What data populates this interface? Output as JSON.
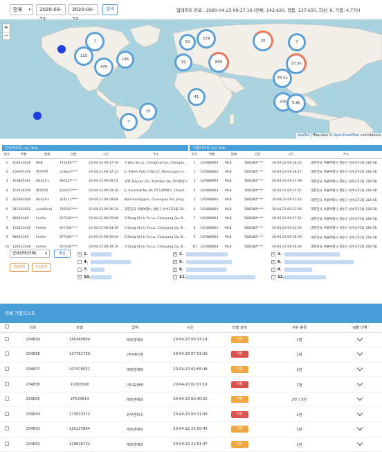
{
  "toolbar": {
    "scope": "전체",
    "date_from": "2020-03-23",
    "date_to": "2020-04-23",
    "search_label": "검색",
    "status": "업데이트 완료 : 2020-04-23 09:37:16 (전체: 142,420, 정품: 137,650, 의심: 6, 가품: 4,770)"
  },
  "map": {
    "zoom_in": "+",
    "zoom_out": "−",
    "attribution_leaflet": "Leaflet",
    "attribution_sep": " | Map data © ",
    "attribution_osm": "OpenStreetMap",
    "attribution_tail": " contributors",
    "clusters": [
      "7",
      "115",
      "475",
      "196",
      "52",
      "229",
      "866",
      "19",
      "20",
      "7",
      "33.3k",
      "76.5k",
      "41",
      "20k",
      "5.8k",
      "15",
      "7"
    ]
  },
  "auth_list": {
    "title": "인식리스트",
    "title_small": "(최근 30개)",
    "columns": [
      "번호",
      "라벨",
      "업체",
      "단말",
      "시간",
      "주소"
    ],
    "rows": [
      [
        "1",
        "154433016",
        "MLB",
        "T11860****",
        "20-04-23 09:37:54",
        "5 Wan Ke Lu, Changhua Qu, Chengdu Shi, Sichuan Sheng"
      ],
      [
        "2",
        "159097426",
        "텐바이텐",
        "c1dba3****",
        "20-04-23 09:32:13",
        "Jl. Palem Putri 5 No.12, Bencongan Indah, Tangerang"
      ],
      [
        "3",
        "163805461",
        "AGE20's",
        "98232f****",
        "20-04-23 09:29:51",
        "유화 Taiyuan Shi, Xiaodian Qu, 타이위안시"
      ],
      [
        "4",
        "159128109",
        "텐바이텐",
        "103d75****",
        "20-04-23 09:29:30",
        "Jl. Karamat No.36, RT.14/RW.1, Chandak, Jakarta"
      ],
      [
        "5",
        "163381609",
        "AGE20's",
        "3E4111****",
        "20-04-23 09:28:08",
        "Nanzhuangqiao, Chuangxin Rd, Jiangyin Shi"
      ],
      [
        "6",
        "347361855",
        "undefined",
        "746002****",
        "20-04-23 09:26:34",
        "대한민국 서울특별시 성동구 성수2가3동 284-58"
      ],
      [
        "7",
        "98914369",
        "Fcellie",
        "0FF328****",
        "20-04-23 09:25:08",
        "5 Dong Shi Li Pu Lu, Chaoyang Qu, Beijing Shi"
      ],
      [
        "8",
        "136521046",
        "Fcellie",
        "0FF328****",
        "20-04-23 09:24:29",
        "5 Dong Shi Li Pu Lu, Chaoyang Qu, Beijing Shi"
      ],
      [
        "9",
        "98914369",
        "Fcellie",
        "0FF328****",
        "20-04-23 09:19:44",
        "5 Dong Shi Li Pu Lu, Chaoyang Qu, Beijing Shi"
      ],
      [
        "10",
        "136521046",
        "Fcellie",
        "0FF328****",
        "20-04-23 09:19:19",
        "5 Dong Shi Li Pu Lu, Chaoyang Qu, Beijing Shi"
      ]
    ]
  },
  "fake_list": {
    "title": "가품리스트",
    "title_small": "(최근 30개)",
    "columns": [
      "번호",
      "라벨",
      "업체",
      "단말",
      "시간",
      "주소"
    ],
    "rows": [
      [
        "1",
        "145480904",
        "MLB",
        "5B6D80****",
        "20-04-23 09:38:21",
        "대한민국 서울특별시 성동구 성수2가3동 284-58"
      ],
      [
        "2",
        "145480904",
        "MLB",
        "5B6D80****",
        "20-04-23 09:38:17",
        "대한민국 서울특별시 성동구 성수2가3동 284-58"
      ],
      [
        "3",
        "145480904",
        "MLB",
        "5B6D80****",
        "20-04-23 09:37:49",
        "대한민국 서울특별시 성동구 성수2가3동 284-58"
      ],
      [
        "4",
        "145480904",
        "MLB",
        "5B6D80****",
        "20-04-23 09:37:15",
        "대한민국 서울특별시 성동구 성수2가3동 284-58"
      ],
      [
        "5",
        "145480904",
        "MLB",
        "5B6D80****",
        "20-04-23 09:31:14",
        "대한민국 서울특별시 성동구 성수2가3동 284-58"
      ],
      [
        "6",
        "145480904",
        "MLB",
        "5B6D80****",
        "20-04-23 09:31:04",
        "대한민국 서울특별시 성동구 성수2가3동 284-58"
      ],
      [
        "7",
        "145480904",
        "MLB",
        "5B6D80****",
        "20-04-23 09:27:15",
        "대한민국 서울특별시 성동구 성수2가3동 284-58"
      ],
      [
        "8",
        "145480904",
        "MLB",
        "5B6D80****",
        "20-04-23 09:03:56",
        "대한민국 서울특별시 성동구 성수2가3동 284-58"
      ],
      [
        "9",
        "145480904",
        "MLB",
        "5B6D80****",
        "20-04-23 09:02:59",
        "대한민국 서울특별시 성동구 성수2가3동 284-58"
      ],
      [
        "10",
        "145480904",
        "MLB",
        "5B6D80****",
        "20-04-23 08:59:04",
        "대한민국 서울특별시 성동구 성수2가3동 284-58"
      ]
    ]
  },
  "controls": {
    "company_select": "업체선택(전체)",
    "confirm_label": "확인",
    "fake_label": "가품처리",
    "suspect_label": "의심처리"
  },
  "categories": [
    {
      "num": "1.",
      "checked": true
    },
    {
      "num": "2.",
      "checked": true
    },
    {
      "num": "3.",
      "checked": true
    },
    {
      "num": "4.",
      "checked": false
    },
    {
      "num": "5.",
      "checked": true
    },
    {
      "num": "6.",
      "checked": true
    },
    {
      "num": "7.",
      "checked": false
    },
    {
      "num": "8.",
      "checked": true
    },
    {
      "num": "9.",
      "checked": true
    },
    {
      "num": "10.",
      "checked": true
    },
    {
      "num": "11.",
      "checked": false
    },
    {
      "num": "12.",
      "checked": false
    }
  ],
  "all_fake": {
    "title": "전체 가품리스트",
    "columns": [
      "",
      "번호",
      "라벨",
      "업체",
      "시간",
      "라벨 상태",
      "사유 항목",
      "검출 내역"
    ],
    "rows": [
      {
        "no": "234839",
        "label": "145480904",
        "company": "에프앤에프",
        "time": "20-04-23 09:33:14",
        "status": "가품",
        "status_color": "#f0a844",
        "reason": "1번"
      },
      {
        "no": "234838",
        "label": "127761730",
        "company": "(주)제이엠",
        "time": "20-04-23 07:03:09",
        "status": "가품",
        "status_color": "#d9534f",
        "reason": "1번"
      },
      {
        "no": "234837",
        "label": "107978551",
        "company": "에프앤에프",
        "time": "20-04-23 02:55:48",
        "status": "가품",
        "status_color": "#f0a844",
        "reason": "1번"
      },
      {
        "no": "234836",
        "label": "11067098",
        "company": "(주)GJ화학",
        "time": "20-04-23 02:07:18",
        "status": "가품",
        "status_color": "#d9534f",
        "reason": "1번"
      },
      {
        "no": "234835",
        "label": "97534614",
        "company": "에프앤에프",
        "time": "20-04-23 00:40:20",
        "status": "가품",
        "status_color": "#f0a844",
        "reason": "2번 | 5번"
      },
      {
        "no": "234834",
        "label": "173513372",
        "company": "위우엔터스",
        "time": "20-04-23 00:31:00",
        "status": "가품",
        "status_color": "#d9534f",
        "reason": "1번"
      },
      {
        "no": "234833",
        "label": "129137894",
        "company": "에프앤에프",
        "time": "20-04-22 22:55:45",
        "status": "가품",
        "status_color": "#f0a844",
        "reason": "1번"
      },
      {
        "no": "234832",
        "label": "129616731",
        "company": "에프앤에프",
        "time": "20-04-22 22:51:47",
        "status": "가품",
        "status_color": "#f0a844",
        "reason": "1번"
      }
    ]
  }
}
